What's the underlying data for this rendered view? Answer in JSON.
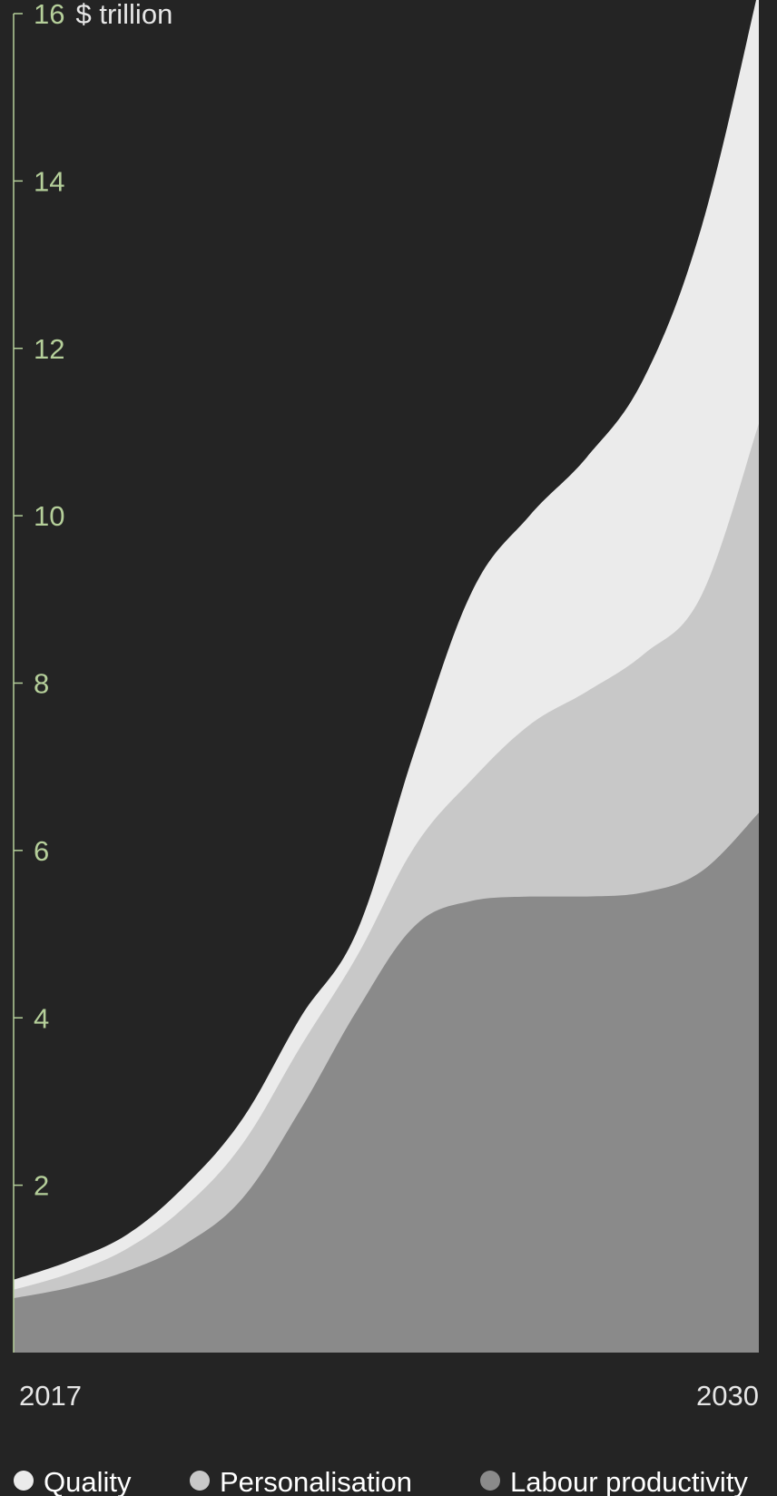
{
  "chart_data": {
    "type": "area",
    "stacked": true,
    "x": [
      2017,
      2018,
      2019,
      2020,
      2021,
      2022,
      2023,
      2024,
      2025,
      2026,
      2027,
      2028,
      2029,
      2030
    ],
    "x_tick_labels": [
      "2017",
      "2030"
    ],
    "unit_label": "$ trillion",
    "ylim": [
      0,
      16
    ],
    "y_ticks": [
      2,
      4,
      6,
      8,
      10,
      12,
      14,
      16
    ],
    "grid": false,
    "legend_position": "bottom",
    "series": [
      {
        "name": "Labour productivity",
        "color": "#8a8a8a",
        "values": [
          0.65,
          0.78,
          0.98,
          1.3,
          1.85,
          2.9,
          4.1,
          5.1,
          5.4,
          5.45,
          5.45,
          5.5,
          5.75,
          6.45
        ]
      },
      {
        "name": "Personalisation",
        "color": "#c8c8c8",
        "values": [
          0.1,
          0.17,
          0.27,
          0.45,
          0.65,
          0.75,
          0.65,
          0.95,
          1.45,
          2.05,
          2.45,
          2.85,
          3.3,
          4.65
        ]
      },
      {
        "name": "Quality",
        "color": "#ebebeb",
        "values": [
          0.12,
          0.15,
          0.17,
          0.25,
          0.3,
          0.35,
          0.3,
          1.15,
          2.25,
          2.5,
          2.8,
          3.3,
          4.4,
          5.2
        ]
      }
    ]
  }
}
